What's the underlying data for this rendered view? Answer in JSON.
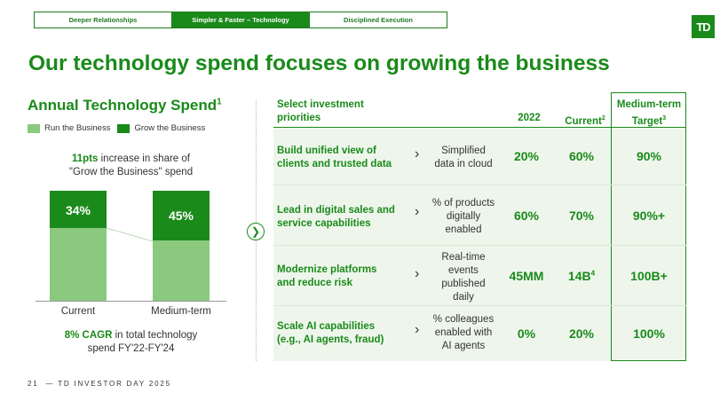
{
  "tabs": [
    "Deeper Relationships",
    "Simpler & Faster – Technology",
    "Disciplined Execution"
  ],
  "logo": "TD",
  "title": "Our technology spend focuses on growing the business",
  "left": {
    "title": "Annual Technology Spend",
    "title_sup": "1",
    "legend": {
      "run": "Run the Business",
      "grow": "Grow the Business"
    },
    "note_highlight": "11pts",
    "note_rest_1": " increase in share of",
    "note_rest_2": "\"Grow the Business\" spend",
    "bars": [
      {
        "label": "Current",
        "grow_pct": "34%"
      },
      {
        "label": "Medium-term",
        "grow_pct": "45%"
      }
    ],
    "cagr_highlight": "8% CAGR",
    "cagr_rest_1": " in total technology",
    "cagr_rest_2": "spend FY'22-FY'24"
  },
  "table": {
    "header": {
      "priorities_1": "Select investment",
      "priorities_2": "priorities",
      "y2022": "2022",
      "current": "Current",
      "current_sup": "2",
      "target_1": "Medium-term",
      "target_2": "Target",
      "target_sup": "3"
    },
    "rows": [
      {
        "p1": "Build unified view of",
        "p2": "clients and trusted data",
        "m1": "Simplified",
        "m2": "data in cloud",
        "m3": "",
        "m4": "",
        "v2022": "20%",
        "current": "60%",
        "current_sup": "",
        "target": "90%"
      },
      {
        "p1": "Lead in digital sales and",
        "p2": "service capabilities",
        "m1": "% of products",
        "m2": "digitally",
        "m3": "enabled",
        "m4": "",
        "v2022": "60%",
        "current": "70%",
        "current_sup": "",
        "target": "90%+"
      },
      {
        "p1": "Modernize platforms",
        "p2": "and reduce risk",
        "m1": "Real-time",
        "m2": "events",
        "m3": "published",
        "m4": "daily",
        "v2022": "45MM",
        "current": "14B",
        "current_sup": "4",
        "target": "100B+"
      },
      {
        "p1": "Scale AI capabilities",
        "p2": "(e.g., AI agents, fraud)",
        "m1": "% colleagues",
        "m2": "enabled with",
        "m3": "AI agents",
        "m4": "",
        "v2022": "0%",
        "current": "20%",
        "current_sup": "",
        "target": "100%"
      }
    ]
  },
  "footer": {
    "page": "21",
    "text": "— TD INVESTOR DAY 2025"
  },
  "colors": {
    "brand_green": "#1a8a1a",
    "light_green": "#8ac97e",
    "table_bg": "#eef6ec"
  }
}
